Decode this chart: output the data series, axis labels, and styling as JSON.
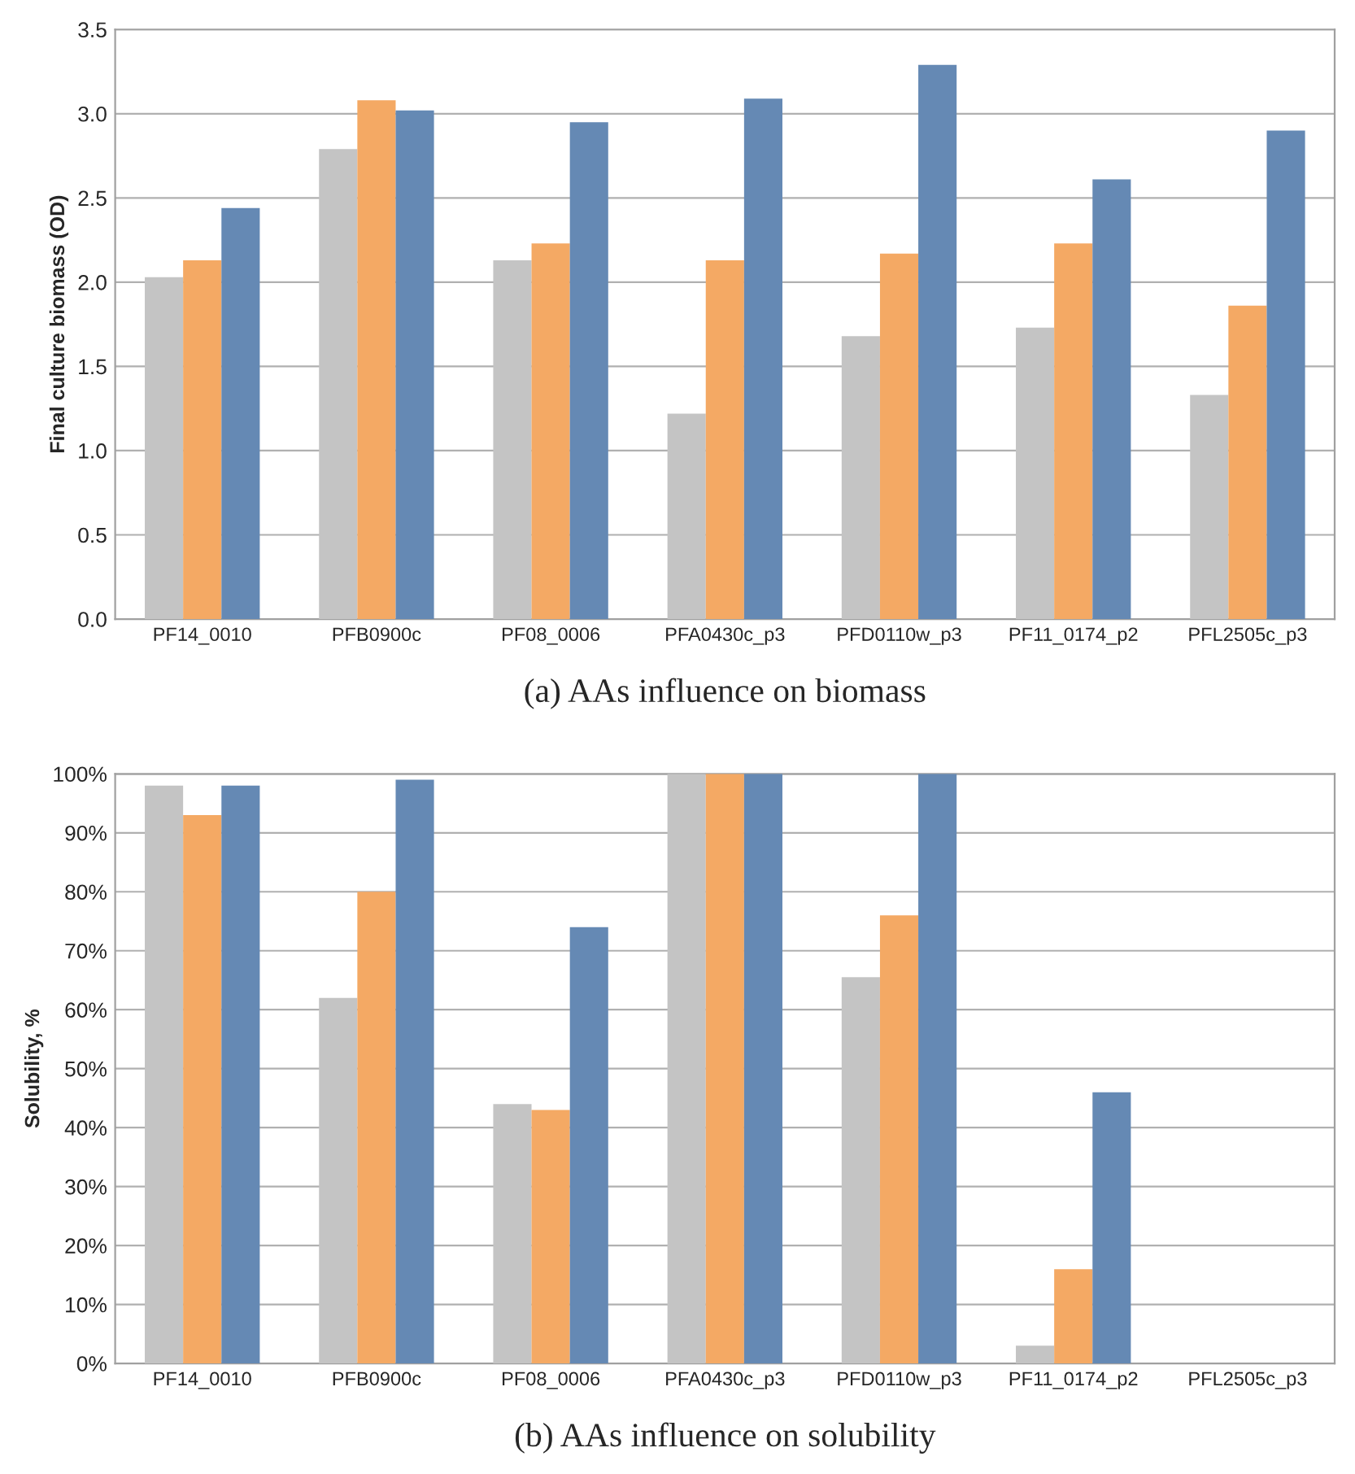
{
  "chart_data": [
    {
      "type": "bar",
      "title": "(a) AAs influence on biomass",
      "ylabel": "Final culture biomass (OD)",
      "categories": [
        "PF14_0010",
        "PFB0900c",
        "PF08_0006",
        "PFA0430c_p3",
        "PFD0110w_p3",
        "PF11_0174_p2",
        "PFL2505c_p3"
      ],
      "series": [
        {
          "color": "#c4c4c4",
          "values": [
            2.03,
            2.79,
            2.13,
            1.22,
            1.68,
            1.73,
            1.33
          ]
        },
        {
          "color": "#f4a964",
          "values": [
            2.13,
            3.08,
            2.23,
            2.13,
            2.17,
            2.23,
            1.86
          ]
        },
        {
          "color": "#6589b4",
          "values": [
            2.44,
            3.02,
            2.95,
            3.09,
            3.29,
            2.61,
            2.9
          ]
        }
      ],
      "ylim": [
        0,
        3.5
      ],
      "yticks": [
        {
          "value": 0,
          "label": "0.0"
        },
        0.5,
        {
          "value": 1,
          "label": "1.0"
        },
        1.5,
        {
          "value": 2,
          "label": "2.0"
        },
        2.5,
        {
          "value": 3,
          "label": "3.0"
        },
        3.5
      ],
      "grid": "y"
    },
    {
      "type": "bar",
      "title": "(b) AAs influence on solubility",
      "ylabel": "Solubility, %",
      "categories": [
        "PF14_0010",
        "PFB0900c",
        "PF08_0006",
        "PFA0430c_p3",
        "PFD0110w_p3",
        "PF11_0174_p2",
        "PFL2505c_p3"
      ],
      "series": [
        {
          "color": "#c4c4c4",
          "values": [
            98,
            62,
            44,
            100,
            65.5,
            3,
            null
          ]
        },
        {
          "color": "#f4a964",
          "values": [
            93,
            80,
            43,
            100,
            76,
            16,
            null
          ]
        },
        {
          "color": "#6589b4",
          "values": [
            98,
            99,
            74,
            100,
            100,
            46,
            null
          ]
        }
      ],
      "ylim": [
        0,
        100
      ],
      "yticks": [
        {
          "value": 0,
          "label": "0%"
        },
        {
          "value": 10,
          "label": "10%"
        },
        {
          "value": 20,
          "label": "20%"
        },
        {
          "value": 30,
          "label": "30%"
        },
        {
          "value": 40,
          "label": "40%"
        },
        {
          "value": 50,
          "label": "50%"
        },
        {
          "value": 60,
          "label": "60%"
        },
        {
          "value": 70,
          "label": "70%"
        },
        {
          "value": 80,
          "label": "80%"
        },
        {
          "value": 90,
          "label": "90%"
        },
        {
          "value": 100,
          "label": "100%"
        }
      ],
      "grid": "y"
    }
  ]
}
